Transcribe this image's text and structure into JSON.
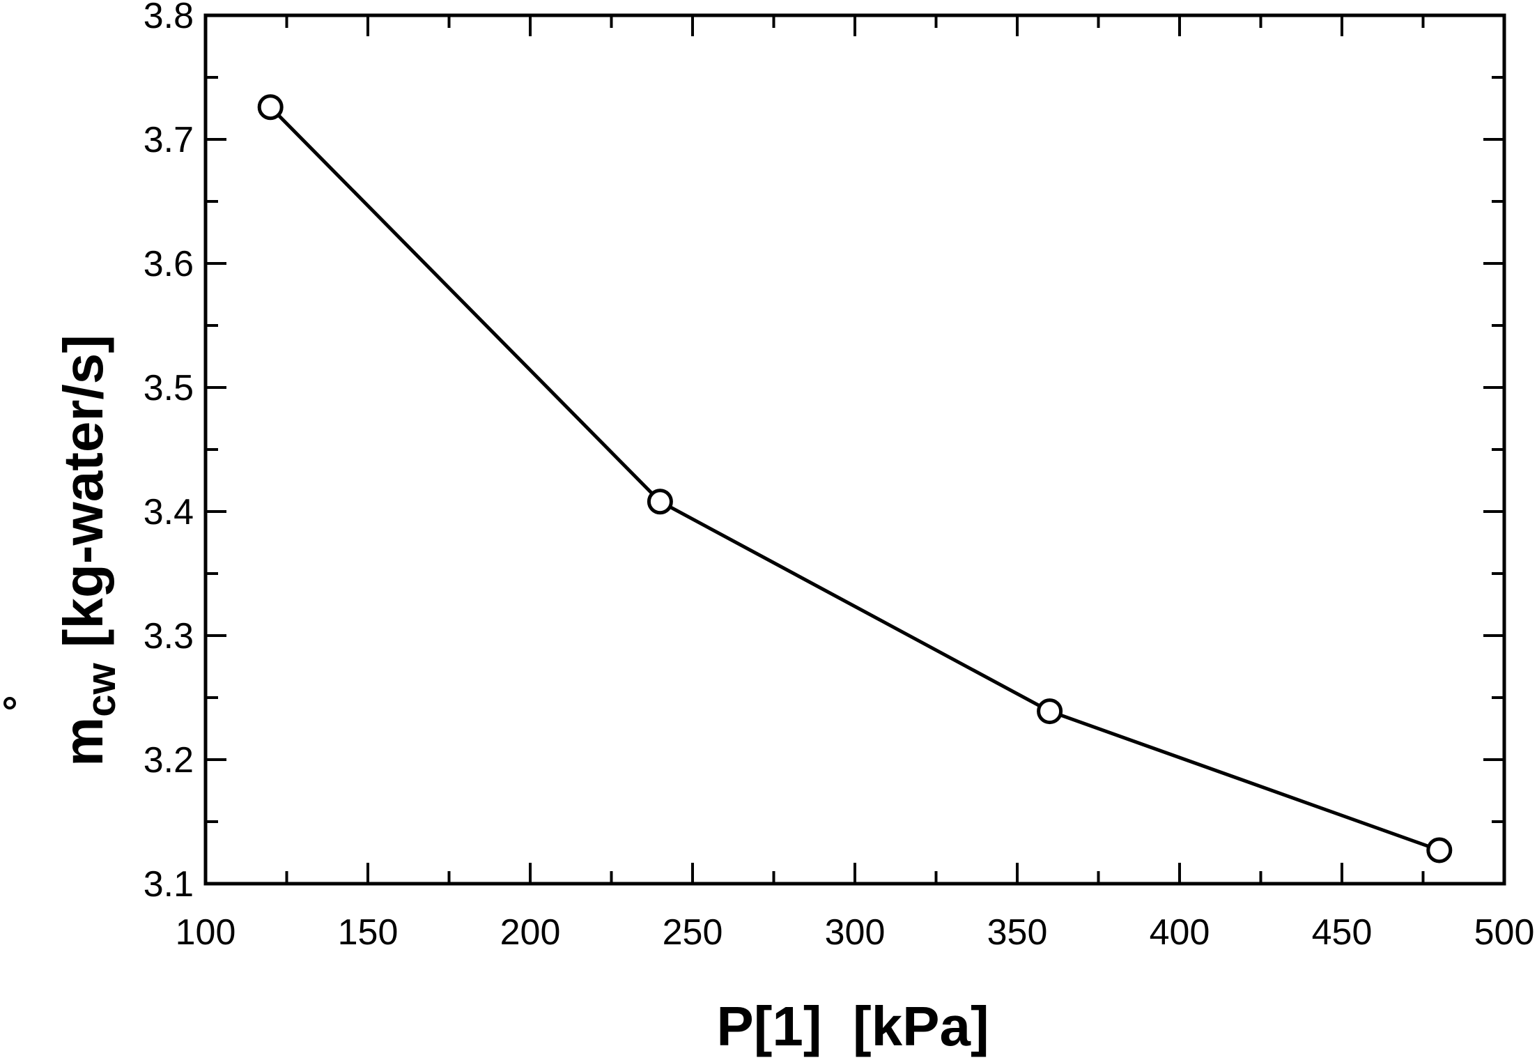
{
  "chart_data": {
    "type": "line",
    "title": "",
    "xlabel": "P[1]  [kPa]",
    "ylabel_symbol": "m",
    "ylabel_subscript": "cw",
    "ylabel_units": "[kg-water/s]",
    "xlim": [
      100,
      500
    ],
    "ylim": [
      3.1,
      3.8
    ],
    "x_ticks": [
      100,
      150,
      200,
      250,
      300,
      350,
      400,
      450,
      500
    ],
    "y_ticks": [
      3.1,
      3.2,
      3.3,
      3.4,
      3.5,
      3.6,
      3.7,
      3.8
    ],
    "x_tick_labels": [
      "100",
      "150",
      "200",
      "250",
      "300",
      "350",
      "400",
      "450",
      "500"
    ],
    "y_tick_labels": [
      "3.1",
      "3.2",
      "3.3",
      "3.4",
      "3.5",
      "3.6",
      "3.7",
      "3.8"
    ],
    "grid": false,
    "series": [
      {
        "x": [
          120,
          240,
          360,
          480
        ],
        "y": [
          3.726,
          3.408,
          3.239,
          3.127
        ],
        "marker": "open-circle",
        "color": "#000000"
      }
    ]
  }
}
